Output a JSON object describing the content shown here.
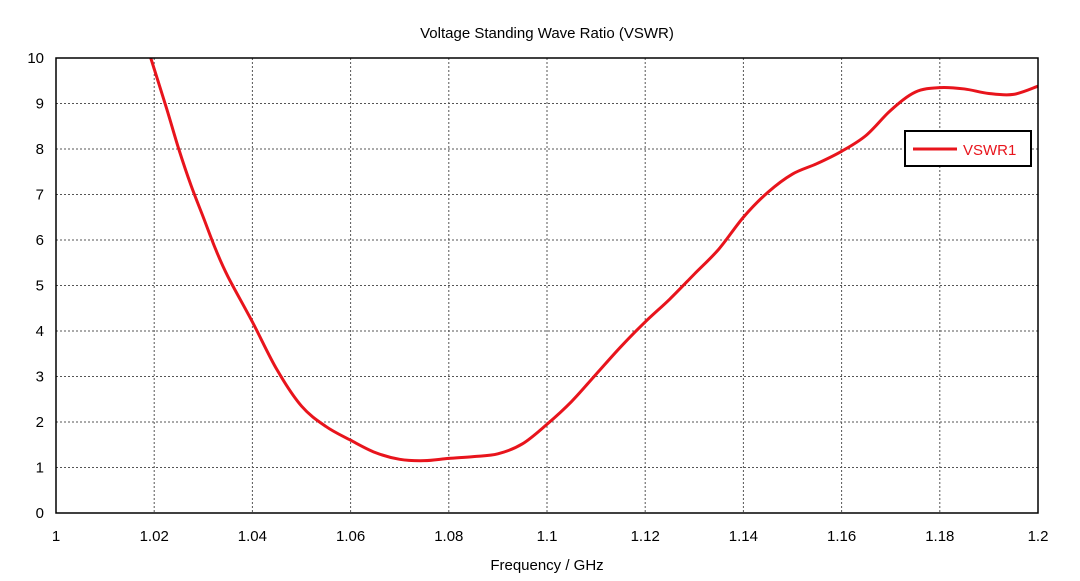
{
  "chart_data": {
    "type": "line",
    "title": "Voltage Standing Wave Ratio (VSWR)",
    "xlabel": "Frequency / GHz",
    "ylabel": "",
    "xlim": [
      1,
      1.2
    ],
    "ylim": [
      0,
      10
    ],
    "xticks": [
      "1",
      "1.02",
      "1.04",
      "1.06",
      "1.08",
      "1.1",
      "1.12",
      "1.14",
      "1.16",
      "1.18",
      "1.2"
    ],
    "yticks": [
      "0",
      "1",
      "2",
      "3",
      "4",
      "5",
      "6",
      "7",
      "8",
      "9",
      "10"
    ],
    "grid": true,
    "legend_position": "right",
    "series": [
      {
        "name": "VSWR1",
        "color": "#e8141c",
        "x": [
          1.0193,
          1.0225,
          1.025,
          1.0275,
          1.03,
          1.0325,
          1.035,
          1.04,
          1.045,
          1.05,
          1.055,
          1.06,
          1.065,
          1.07,
          1.075,
          1.08,
          1.085,
          1.09,
          1.095,
          1.1,
          1.105,
          1.11,
          1.115,
          1.12,
          1.125,
          1.13,
          1.135,
          1.14,
          1.145,
          1.15,
          1.155,
          1.16,
          1.165,
          1.17,
          1.175,
          1.18,
          1.185,
          1.19,
          1.195,
          1.2
        ],
        "values": [
          10.0,
          8.9,
          8.0,
          7.2,
          6.5,
          5.8,
          5.2,
          4.2,
          3.15,
          2.35,
          1.9,
          1.6,
          1.33,
          1.18,
          1.15,
          1.2,
          1.24,
          1.3,
          1.52,
          1.95,
          2.45,
          3.05,
          3.65,
          4.2,
          4.7,
          5.25,
          5.8,
          6.5,
          7.05,
          7.45,
          7.68,
          7.95,
          8.3,
          8.85,
          9.25,
          9.35,
          9.32,
          9.22,
          9.2,
          9.38
        ]
      }
    ]
  }
}
